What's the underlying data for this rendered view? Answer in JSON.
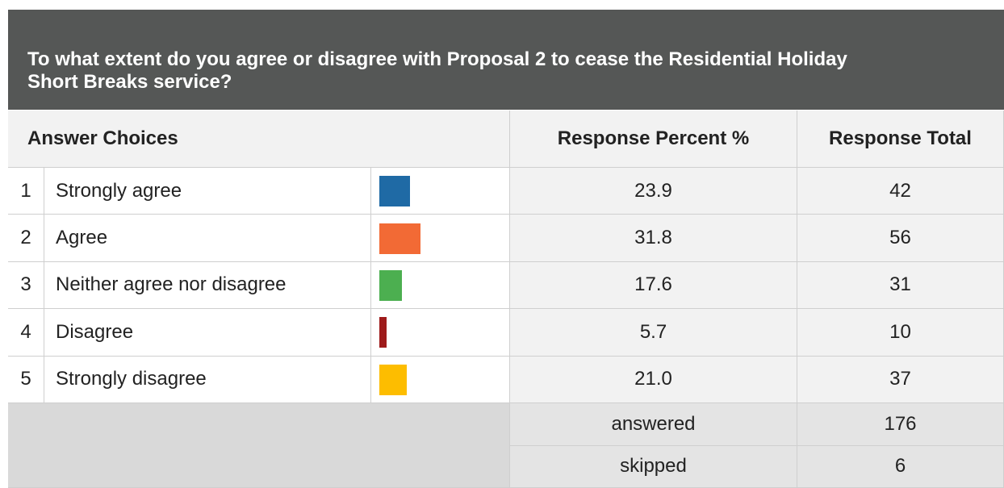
{
  "title": "To what extent do you agree or disagree with Proposal 2 to cease the Residential Holiday Short Breaks service?",
  "table": {
    "headers": [
      "Answer Choices",
      "Response Percent %",
      "Response Total"
    ],
    "rows": [
      {
        "index": "1",
        "label": "Strongly agree",
        "color": "#1f6aa5",
        "percent": 23.9,
        "total": 42
      },
      {
        "index": "2",
        "label": "Agree",
        "color": "#f26a35",
        "percent": 31.8,
        "total": 56
      },
      {
        "index": "3",
        "label": "Neither agree nor disagree",
        "color": "#4caf50",
        "percent": 17.6,
        "total": 31
      },
      {
        "index": "4",
        "label": "Disagree",
        "color": "#9e1b1b",
        "percent": 5.7,
        "total": 10
      },
      {
        "index": "5",
        "label": "Strongly disagree",
        "color": "#fdbd00",
        "percent": 21.0,
        "percent_label": "21.0",
        "total": 37
      }
    ],
    "footer": [
      {
        "label": "answered",
        "value": 176
      },
      {
        "label": "skipped",
        "value": 6
      }
    ]
  }
}
